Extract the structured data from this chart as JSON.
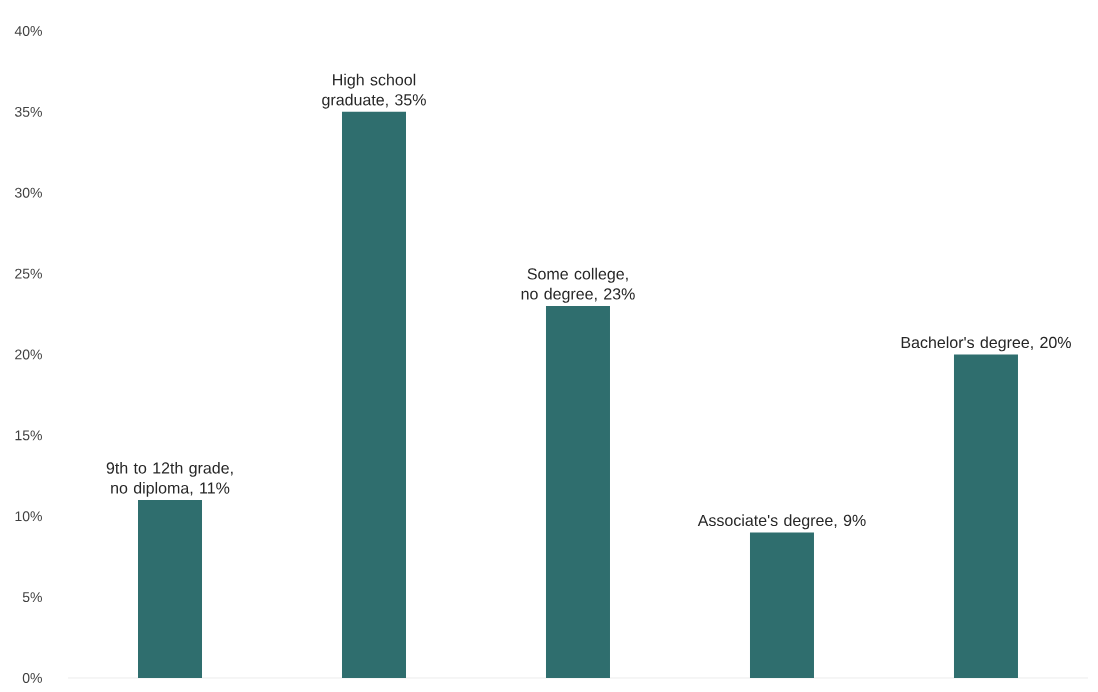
{
  "chart_data": {
    "type": "bar",
    "categories": [
      null,
      null,
      null,
      null,
      null
    ],
    "values": [
      11,
      35,
      23,
      9,
      20
    ],
    "value_labels": [
      "9th to 12th grade, no diploma, 11%",
      "High school graduate, 35%",
      "Some college, no degree, 23%",
      "Associate's degree, 9%",
      "Bachelor's degree, 20%"
    ],
    "color": "#2f6e6e",
    "ylim": [
      0,
      40
    ],
    "yticks": [
      {
        "value": 0,
        "label": "0%"
      },
      {
        "value": 5,
        "label": "5%"
      },
      {
        "value": 10,
        "label": "10%"
      },
      {
        "value": 15,
        "label": "15%"
      },
      {
        "value": 20,
        "label": "20%"
      },
      {
        "value": 25,
        "label": "25%"
      },
      {
        "value": 30,
        "label": "30%"
      },
      {
        "value": 35,
        "label": "35%"
      },
      {
        "value": 40,
        "label": "40%"
      }
    ]
  }
}
